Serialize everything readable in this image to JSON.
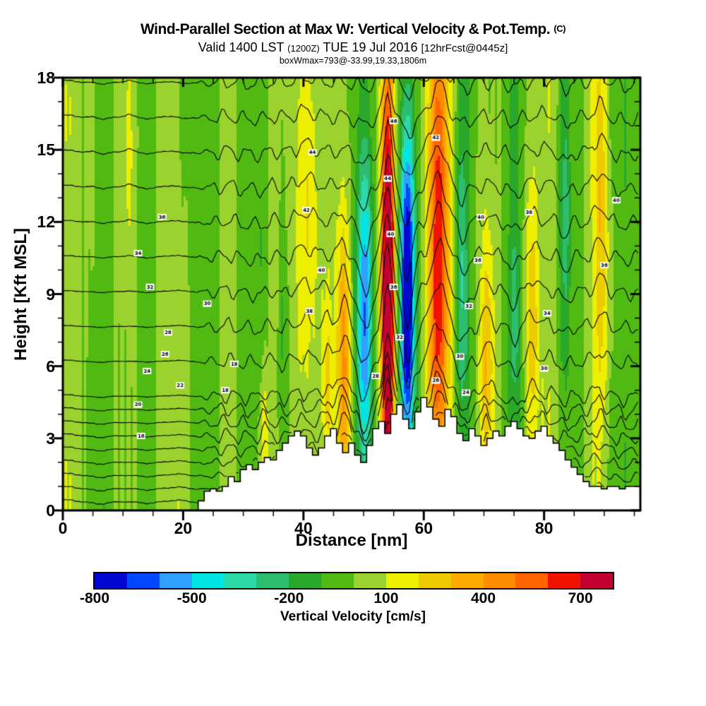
{
  "header": {
    "title": "Wind-Parallel Section at Max W: Vertical Velocity & Pot.Temp.",
    "title_suffix": "(C)",
    "subtitle_prefix": "Valid 1400 LST",
    "subtitle_small": "(1200Z)",
    "subtitle_mid": "TUE 19 Jul 2016",
    "subtitle_bracket": "[12hrFcst@0445z]",
    "info_line": "boxWmax=793@-33.99,19.33,1806m"
  },
  "axes": {
    "x_label": "Distance [nm]",
    "y_label": "Height [Kft MSL]"
  },
  "colorbar": {
    "title": "Vertical Velocity [cm/s]"
  },
  "chart_data": {
    "type": "heatmap",
    "subtype": "filled-contour-vertical-cross-section",
    "title": "Wind-Parallel Section at Max W: Vertical Velocity & Pot.Temp. (C)",
    "subtitle": "Valid 1400 LST (1200Z) TUE 19 Jul 2016 [12hrFcst@0445z]",
    "annotation": "boxWmax=793@-33.99,19.33,1806m",
    "x": {
      "label": "Distance [nm]",
      "range": [
        0,
        96
      ],
      "major_ticks": [
        0,
        20,
        40,
        60,
        80
      ],
      "major_tick_labels": [
        "0",
        "20",
        "40",
        "60",
        "80"
      ],
      "minor_tick_step": 5
    },
    "y": {
      "label": "Height [Kft MSL]",
      "range": [
        0,
        18
      ],
      "major_ticks": [
        0,
        3,
        6,
        9,
        12,
        15,
        18
      ],
      "major_tick_labels": [
        "0",
        "3",
        "6",
        "9",
        "12",
        "15",
        "18"
      ],
      "minor_tick_step": 1
    },
    "colorbar": {
      "label": "Vertical Velocity [cm/s]",
      "range": [
        -800,
        800
      ],
      "level_step": 100,
      "tick_values": [
        -800,
        -500,
        -200,
        100,
        400,
        700
      ],
      "tick_labels": [
        "-800",
        "-500",
        "-200",
        "100",
        "400",
        "700"
      ],
      "colors": [
        "#0008d0",
        "#0048ff",
        "#30a0ff",
        "#00e4e4",
        "#2ed9a8",
        "#2dbd6e",
        "#29a829",
        "#50ba12",
        "#9cd22e",
        "#eeee00",
        "#eccc00",
        "#ffaa00",
        "#ff8c00",
        "#ff6400",
        "#f01400",
        "#c40030"
      ]
    },
    "terrain_profile_kft": [
      0,
      0,
      0,
      0,
      0,
      0,
      0,
      0,
      0,
      0,
      0,
      0,
      0,
      0,
      0,
      0,
      0,
      0,
      0,
      0,
      0,
      0,
      0,
      0.4,
      0.8,
      0.9,
      0.8,
      1.0,
      1.4,
      1.2,
      1.7,
      1.9,
      1.7,
      2.0,
      2.2,
      2.1,
      2.5,
      2.8,
      3.1,
      3.3,
      3.1,
      2.6,
      2.3,
      2.6,
      3.1,
      3.4,
      2.8,
      2.4,
      2.8,
      2.3,
      2.0,
      2.7,
      3.4,
      3.7,
      3.2,
      4.0,
      4.4,
      3.8,
      3.4,
      4.1,
      4.7,
      4.3,
      3.8,
      3.5,
      4.2,
      3.9,
      3.2,
      2.9,
      3.4,
      3.1,
      2.7,
      3.0,
      3.3,
      3.1,
      3.5,
      3.7,
      3.4,
      3.1,
      3.0,
      3.3,
      3.5,
      3.1,
      2.8,
      2.5,
      2.1,
      1.8,
      1.5,
      1.2,
      1.0,
      1.0,
      0.9,
      1.0,
      1.0,
      0.9,
      1.0,
      1.0,
      1.0
    ],
    "updraft_bands": [
      {
        "c": 40.5,
        "s": 1.6,
        "a": 230,
        "zc": 12,
        "zs": 8
      },
      {
        "c": 44.0,
        "s": 0.8,
        "a": 200,
        "zc": 5,
        "zs": 4
      },
      {
        "c": 46.8,
        "s": 1.2,
        "a": 420,
        "zc": 6,
        "zs": 6
      },
      {
        "c": 50.2,
        "s": 1.2,
        "a": -560,
        "zc": 8,
        "zs": 7
      },
      {
        "c": 54.0,
        "s": 1.1,
        "a": 1000,
        "zc": 9,
        "zs": 10
      },
      {
        "c": 57.3,
        "s": 1.2,
        "a": -920,
        "zc": 9,
        "zs": 7
      },
      {
        "c": 62.5,
        "s": 1.7,
        "a": 640,
        "zc": 11,
        "zs": 10
      },
      {
        "c": 66.3,
        "s": 1.0,
        "a": -280,
        "zc": 10,
        "zs": 7
      },
      {
        "c": 70.5,
        "s": 1.2,
        "a": 300,
        "zc": 6,
        "zs": 6
      },
      {
        "c": 75.0,
        "s": 1.0,
        "a": -180,
        "zc": 9,
        "zs": 6
      },
      {
        "c": 78.0,
        "s": 1.1,
        "a": 260,
        "zc": 8,
        "zs": 6
      },
      {
        "c": 83.5,
        "s": 1.0,
        "a": -240,
        "zc": 12,
        "zs": 7
      },
      {
        "c": 89.5,
        "s": 1.3,
        "a": 280,
        "zc": 12,
        "zs": 9
      },
      {
        "c": 33.5,
        "s": 0.8,
        "a": 190,
        "zc": 3,
        "zs": 3
      },
      {
        "c": 36.5,
        "s": 0.9,
        "a": -140,
        "zc": 8,
        "zs": 6
      },
      {
        "c": 20.0,
        "s": 1.2,
        "a": -130,
        "zc": 16,
        "zs": 5
      },
      {
        "c": 11.0,
        "s": 1.0,
        "a": 130,
        "zc": 15,
        "zs": 5
      },
      {
        "c": 5.0,
        "s": 1.0,
        "a": 90,
        "zc": 15,
        "zs": 4
      }
    ],
    "background_wave": {
      "a1": 55,
      "f1": 0.72,
      "p1": 0.6,
      "a2": 38,
      "f2": 0.3,
      "p2": 2.0,
      "a3": 22,
      "f3": 1.65,
      "p3": 0.3,
      "a4": 16,
      "f4": 5.3,
      "p4": 0
    },
    "ripple": {
      "amp": 0.26,
      "freq": 1.9,
      "phase_per_line": 1.25,
      "amp2": 0.1,
      "freq2": 3.9
    },
    "displacement": {
      "scale_kft": 2.4,
      "pow": 1.25
    },
    "isentropes": {
      "unit": "C",
      "theta_min": 14,
      "interval": 2,
      "count": 18,
      "z_base": {
        "z0": 0.35,
        "d_low": 0.55,
        "n_low": 9,
        "d_high": 1.45
      }
    },
    "contour_labels": [
      {
        "v": 36,
        "nm": 16.5,
        "kft": 12.2
      },
      {
        "v": 34,
        "nm": 12.5,
        "kft": 10.7
      },
      {
        "v": 32,
        "nm": 14.5,
        "kft": 9.3
      },
      {
        "v": 30,
        "nm": 24.0,
        "kft": 8.6
      },
      {
        "v": 28,
        "nm": 17.5,
        "kft": 7.4
      },
      {
        "v": 26,
        "nm": 17.0,
        "kft": 6.5
      },
      {
        "v": 24,
        "nm": 14.0,
        "kft": 5.8
      },
      {
        "v": 22,
        "nm": 19.5,
        "kft": 5.2
      },
      {
        "v": 20,
        "nm": 12.5,
        "kft": 4.4
      },
      {
        "v": 18,
        "nm": 27.0,
        "kft": 5.0
      },
      {
        "v": 16,
        "nm": 13.0,
        "kft": 3.1
      },
      {
        "v": 18,
        "nm": 28.5,
        "kft": 6.1
      },
      {
        "v": 38,
        "nm": 41.0,
        "kft": 8.3
      },
      {
        "v": 40,
        "nm": 43.0,
        "kft": 10.0
      },
      {
        "v": 42,
        "nm": 40.5,
        "kft": 12.5
      },
      {
        "v": 44,
        "nm": 41.5,
        "kft": 14.9
      },
      {
        "v": 44,
        "nm": 54.0,
        "kft": 13.8
      },
      {
        "v": 40,
        "nm": 54.5,
        "kft": 11.5
      },
      {
        "v": 36,
        "nm": 55.0,
        "kft": 9.3
      },
      {
        "v": 32,
        "nm": 56.0,
        "kft": 7.2
      },
      {
        "v": 28,
        "nm": 52.0,
        "kft": 5.6
      },
      {
        "v": 26,
        "nm": 62.0,
        "kft": 5.4
      },
      {
        "v": 30,
        "nm": 66.0,
        "kft": 6.4
      },
      {
        "v": 32,
        "nm": 67.5,
        "kft": 8.5
      },
      {
        "v": 36,
        "nm": 69.0,
        "kft": 10.4
      },
      {
        "v": 40,
        "nm": 69.5,
        "kft": 12.2
      },
      {
        "v": 38,
        "nm": 77.5,
        "kft": 12.4
      },
      {
        "v": 34,
        "nm": 80.5,
        "kft": 8.2
      },
      {
        "v": 30,
        "nm": 80.0,
        "kft": 5.9
      },
      {
        "v": 40,
        "nm": 92.0,
        "kft": 12.9
      },
      {
        "v": 36,
        "nm": 90.0,
        "kft": 10.2
      },
      {
        "v": 24,
        "nm": 67.0,
        "kft": 4.9
      },
      {
        "v": 46,
        "nm": 55.0,
        "kft": 16.2
      },
      {
        "v": 42,
        "nm": 62.0,
        "kft": 15.5
      }
    ]
  }
}
